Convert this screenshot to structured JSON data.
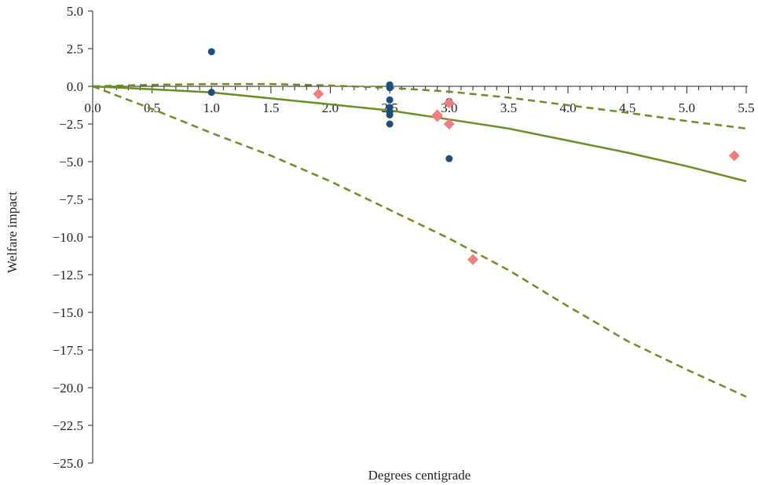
{
  "chart_data": {
    "type": "scatter",
    "title": "",
    "xlabel": "Degrees centigrade",
    "ylabel": "Welfare impact",
    "xlim": [
      0,
      5.5
    ],
    "ylim": [
      -25,
      5
    ],
    "x_ticks": [
      "0.0",
      "0.5",
      "1.0",
      "1.5",
      "2.0",
      "2.5",
      "3.0",
      "3.5",
      "4.0",
      "4.5",
      "5.0",
      "5.5"
    ],
    "y_ticks": [
      "5.0",
      "2.5",
      "0.0",
      "−2.5",
      "−5.0",
      "−7.5",
      "−10.0",
      "−12.5",
      "−15.0",
      "−17.5",
      "−20.0",
      "−22.5",
      "−25.0"
    ],
    "grid": false,
    "legend": "none",
    "series": [
      {
        "kind": "scatter",
        "marker": "circle",
        "color": "#1f4e79",
        "points": [
          {
            "x": 1.0,
            "y": 2.3
          },
          {
            "x": 1.0,
            "y": -0.4
          },
          {
            "x": 2.5,
            "y": 0.1
          },
          {
            "x": 2.5,
            "y": 0.0
          },
          {
            "x": 2.5,
            "y": -0.1
          },
          {
            "x": 2.5,
            "y": -0.9
          },
          {
            "x": 2.5,
            "y": -1.4
          },
          {
            "x": 2.5,
            "y": -1.7
          },
          {
            "x": 2.5,
            "y": -1.9
          },
          {
            "x": 2.5,
            "y": -2.5
          },
          {
            "x": 3.0,
            "y": -1.0
          },
          {
            "x": 3.0,
            "y": -4.8
          }
        ]
      },
      {
        "kind": "scatter",
        "marker": "diamond",
        "color": "#f08080",
        "points": [
          {
            "x": 1.9,
            "y": -0.5
          },
          {
            "x": 2.9,
            "y": -1.9
          },
          {
            "x": 2.9,
            "y": -2.0
          },
          {
            "x": 3.0,
            "y": -1.1
          },
          {
            "x": 3.0,
            "y": -2.5
          },
          {
            "x": 3.2,
            "y": -11.5
          },
          {
            "x": 5.4,
            "y": -4.6
          }
        ]
      },
      {
        "kind": "line",
        "style": "solid",
        "color": "#6b8e23",
        "x": [
          0.0,
          0.5,
          1.0,
          1.5,
          2.0,
          2.5,
          3.0,
          3.5,
          4.0,
          4.5,
          5.0,
          5.5
        ],
        "y": [
          0.0,
          -0.2,
          -0.4,
          -0.8,
          -1.2,
          -1.6,
          -2.2,
          -2.8,
          -3.6,
          -4.4,
          -5.3,
          -6.3
        ]
      },
      {
        "kind": "line",
        "style": "dashed",
        "color": "#6b8e23",
        "x": [
          0.0,
          0.5,
          1.0,
          1.5,
          2.0,
          2.5,
          3.0,
          3.5,
          4.0,
          4.5,
          5.0,
          5.5
        ],
        "y": [
          0.0,
          0.1,
          0.15,
          0.15,
          0.05,
          -0.1,
          -0.35,
          -0.75,
          -1.25,
          -1.75,
          -2.3,
          -2.8
        ]
      },
      {
        "kind": "line",
        "style": "dashed",
        "color": "#6b8e23",
        "x": [
          0.0,
          0.5,
          1.0,
          1.5,
          2.0,
          2.5,
          3.0,
          3.5,
          4.0,
          4.5,
          5.0,
          5.5
        ],
        "y": [
          0.0,
          -1.5,
          -3.1,
          -4.6,
          -6.3,
          -8.2,
          -10.1,
          -12.2,
          -14.6,
          -16.9,
          -18.8,
          -20.6
        ]
      }
    ]
  }
}
